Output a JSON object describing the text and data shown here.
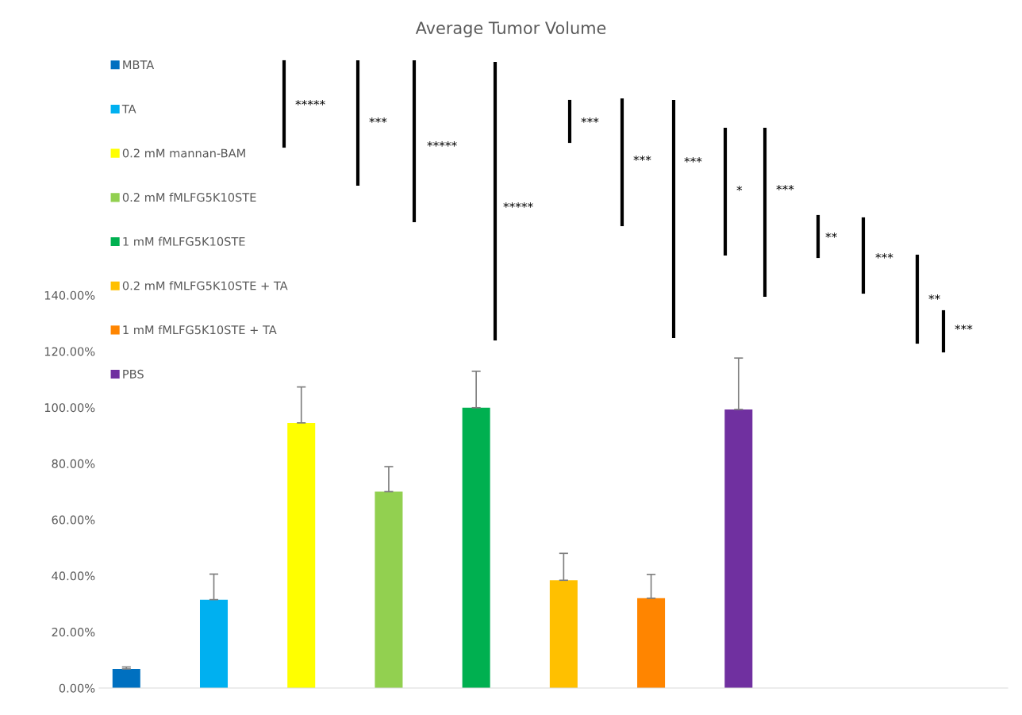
{
  "chart_data": {
    "type": "bar",
    "title": "Average Tumor Volume",
    "categories": [
      null
    ],
    "series": [
      {
        "name": "MBTA",
        "color": "#0070c0",
        "values": [
          6.8
        ],
        "errors": [
          [
            6.8,
            7.5
          ]
        ]
      },
      {
        "name": "TA",
        "color": "#00b0f0",
        "values": [
          31.5
        ],
        "errors": [
          [
            31.5,
            40.6
          ]
        ]
      },
      {
        "name": "0.2 mM mannan-BAM",
        "color": "#ffff00",
        "values": [
          94.5
        ],
        "errors": [
          [
            94.5,
            107.3
          ]
        ]
      },
      {
        "name": "0.2 mM fMLFG5K10STE",
        "color": "#92d050",
        "values": [
          70.0
        ],
        "errors": [
          [
            70.0,
            78.9
          ]
        ]
      },
      {
        "name": "1 mM fMLFG5K10STE",
        "color": "#00b050",
        "values": [
          99.9
        ],
        "errors": [
          [
            99.9,
            112.9
          ]
        ]
      },
      {
        "name": "0.2 mM fMLFG5K10STE + TA",
        "color": "#ffc000",
        "values": [
          38.4
        ],
        "errors": [
          [
            38.4,
            48.0
          ]
        ]
      },
      {
        "name": "1 mM fMLFG5K10STE + TA",
        "color": "#ff8500",
        "values": [
          32.0
        ],
        "errors": [
          [
            32.0,
            40.5
          ]
        ]
      },
      {
        "name": "PBS",
        "color": "#7030a0",
        "values": [
          99.3
        ],
        "errors": [
          [
            99.3,
            117.6
          ]
        ]
      }
    ],
    "ylim": [
      0,
      140
    ],
    "yticks": [
      {
        "value": 0,
        "label": "0.00%"
      },
      {
        "value": 20,
        "label": "20.00%"
      },
      {
        "value": 40,
        "label": "40.00%"
      },
      {
        "value": 60,
        "label": "60.00%"
      },
      {
        "value": 80,
        "label": "80.00%"
      },
      {
        "value": 100,
        "label": "100.00%"
      },
      {
        "value": 120,
        "label": "120.00%"
      },
      {
        "value": 140,
        "label": "140.00%"
      }
    ],
    "annotations": [
      "*****",
      "***",
      "*****",
      "*****",
      "***",
      "***",
      "***",
      "*",
      "***",
      "**",
      "***",
      "**",
      "***"
    ],
    "legend": "top left",
    "grid": false
  }
}
